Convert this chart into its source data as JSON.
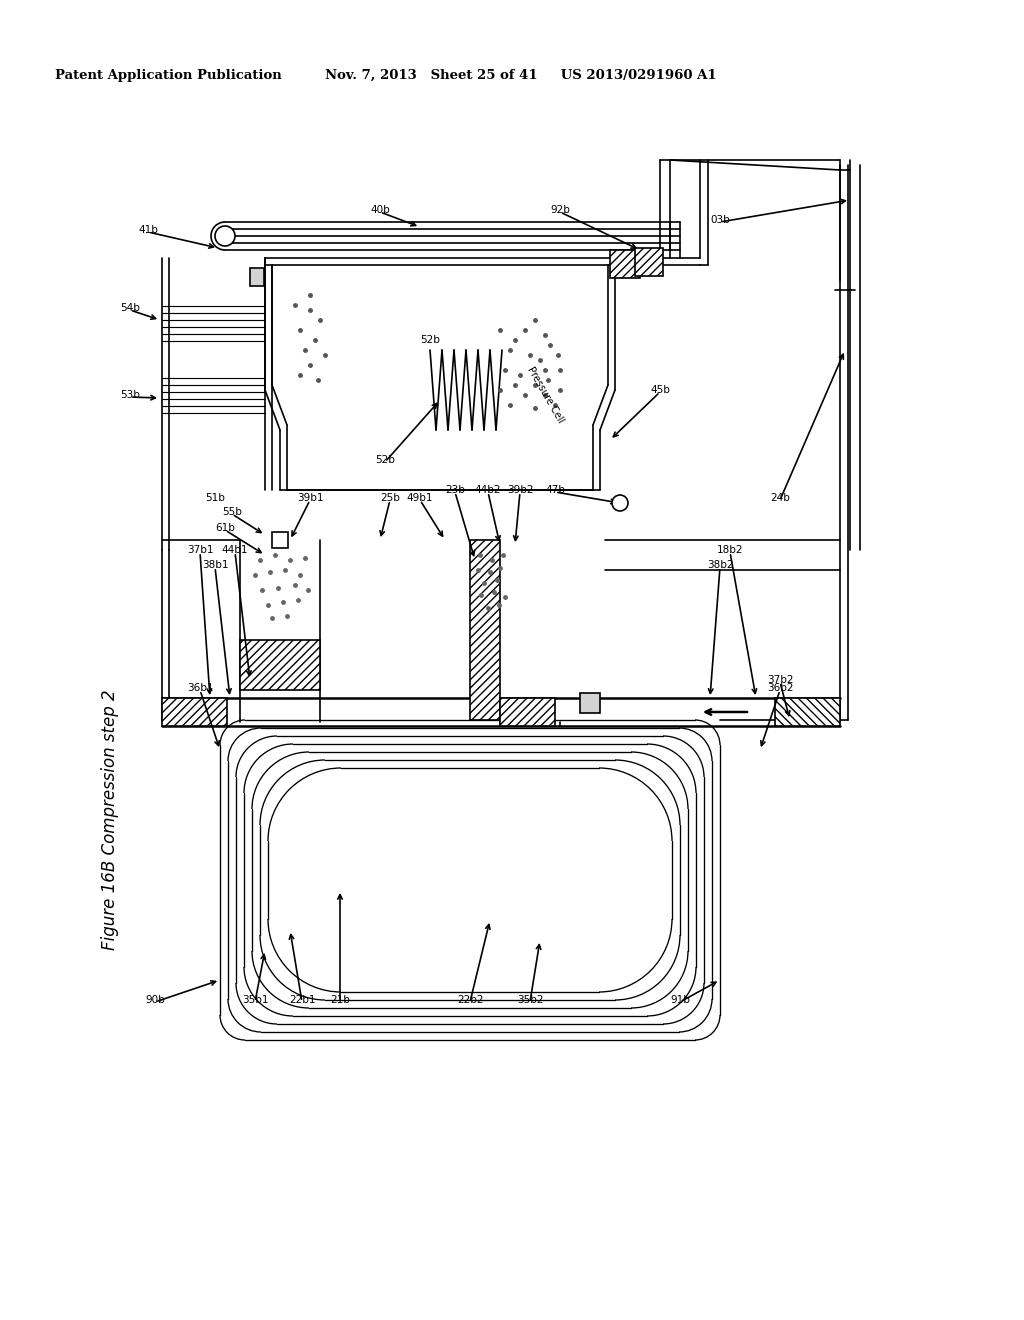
{
  "title_line1": "Patent Application Publication",
  "title_line2": "Nov. 7, 2013   Sheet 25 of 41     US 2013/0291960 A1",
  "figure_label": "Figure 16B Compression step 2",
  "bg_color": "#ffffff",
  "line_color": "#000000"
}
